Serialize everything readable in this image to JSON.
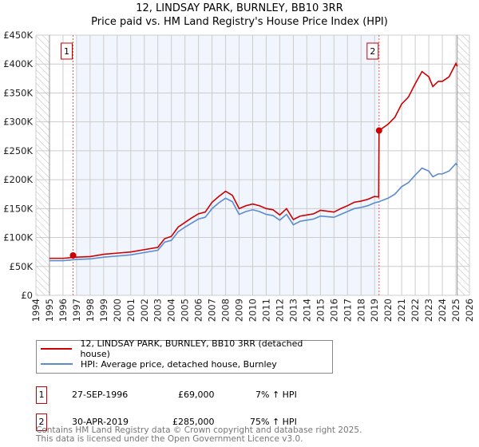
{
  "chart_data": {
    "type": "line",
    "title": "12, LINDSAY PARK, BURNLEY, BB10 3RR",
    "subtitle": "Price paid vs. HM Land Registry's House Price Index (HPI)",
    "xlim": [
      1994,
      2026
    ],
    "ylim": [
      0,
      450000
    ],
    "x_ticks": [
      "1994",
      "1995",
      "1996",
      "1997",
      "1998",
      "1999",
      "2000",
      "2001",
      "2002",
      "2003",
      "2004",
      "2005",
      "2006",
      "2007",
      "2008",
      "2009",
      "2010",
      "2011",
      "2012",
      "2013",
      "2014",
      "2015",
      "2016",
      "2017",
      "2018",
      "2019",
      "2020",
      "2021",
      "2022",
      "2023",
      "2024",
      "2025",
      "2026"
    ],
    "y_ticks": [
      {
        "v": 0,
        "label": "£0"
      },
      {
        "v": 50000,
        "label": "£50K"
      },
      {
        "v": 100000,
        "label": "£100K"
      },
      {
        "v": 150000,
        "label": "£150K"
      },
      {
        "v": 200000,
        "label": "£200K"
      },
      {
        "v": 250000,
        "label": "£250K"
      },
      {
        "v": 300000,
        "label": "£300K"
      },
      {
        "v": 350000,
        "label": "£350K"
      },
      {
        "v": 400000,
        "label": "£400K"
      },
      {
        "v": 450000,
        "label": "£450K"
      }
    ],
    "grid": true,
    "series": [
      {
        "name": "12, LINDSAY PARK, BURNLEY, BB10 3RR (detached house)",
        "color": "#cc0000",
        "x": [
          1995,
          1996,
          1997,
          1998,
          1999,
          2000,
          2001,
          2002,
          2003,
          2003.5,
          2004,
          2004.5,
          2005,
          2005.5,
          2006,
          2006.5,
          2007,
          2007.5,
          2008,
          2008.5,
          2009,
          2009.5,
          2010,
          2010.5,
          2011,
          2011.5,
          2012,
          2012.5,
          2013,
          2013.5,
          2014,
          2014.5,
          2015,
          2016,
          2016.5,
          2017,
          2017.5,
          2018,
          2018.5,
          2019,
          2019.3,
          2019.33,
          2020,
          2020.5,
          2021,
          2021.5,
          2022,
          2022.5,
          2023,
          2023.3,
          2023.7,
          2024,
          2024.5,
          2025,
          2025.1
        ],
        "y": [
          64,
          64,
          66,
          67,
          71,
          73,
          75,
          79,
          83,
          98,
          102,
          118,
          126,
          134,
          141,
          144,
          161,
          171,
          180,
          173,
          150,
          155,
          158,
          155,
          150,
          148,
          139,
          150,
          131,
          137,
          139,
          141,
          147,
          144,
          150,
          155,
          161,
          163,
          166,
          171,
          170,
          285,
          296,
          308,
          331,
          343,
          366,
          387,
          378,
          361,
          370,
          370,
          378,
          401,
          396
        ]
      },
      {
        "name": "HPI: Average price, detached house, Burnley",
        "color": "#5b8bd0",
        "x": [
          1995,
          1996,
          1997,
          1998,
          1999,
          2000,
          2001,
          2002,
          2003,
          2003.5,
          2004,
          2004.5,
          2005,
          2005.5,
          2006,
          2006.5,
          2007,
          2007.5,
          2008,
          2008.5,
          2009,
          2009.5,
          2010,
          2010.5,
          2011,
          2011.5,
          2012,
          2012.5,
          2013,
          2013.5,
          2014,
          2014.5,
          2015,
          2016,
          2016.5,
          2017,
          2017.5,
          2018,
          2018.5,
          2019,
          2019.33,
          2020,
          2020.5,
          2021,
          2021.5,
          2022,
          2022.5,
          2023,
          2023.3,
          2023.7,
          2024,
          2024.5,
          2025,
          2025.1
        ],
        "y": [
          60,
          60,
          62,
          63,
          66,
          68,
          70,
          74,
          78,
          92,
          95,
          110,
          118,
          125,
          132,
          135,
          150,
          160,
          168,
          162,
          140,
          145,
          148,
          145,
          140,
          138,
          130,
          140,
          122,
          128,
          130,
          132,
          137,
          135,
          140,
          145,
          150,
          152,
          155,
          160,
          162,
          168,
          175,
          188,
          195,
          208,
          220,
          215,
          205,
          210,
          210,
          215,
          228,
          225
        ]
      }
    ],
    "y_unit": "thousands GBP",
    "sales": [
      {
        "id": "1",
        "x": 1996.74,
        "y": 69
      },
      {
        "id": "2",
        "x": 2019.33,
        "y": 285
      }
    ],
    "legend_placement": "below"
  },
  "transactions": [
    {
      "id": "1",
      "date": "27-SEP-1996",
      "price": "£69,000",
      "hpi": "7% ↑ HPI"
    },
    {
      "id": "2",
      "date": "30-APR-2019",
      "price": "£285,000",
      "hpi": "75% ↑ HPI"
    }
  ],
  "footer": {
    "line1": "Contains HM Land Registry data © Crown copyright and database right 2025.",
    "line2": "This data is licensed under the Open Government Licence v3.0."
  }
}
